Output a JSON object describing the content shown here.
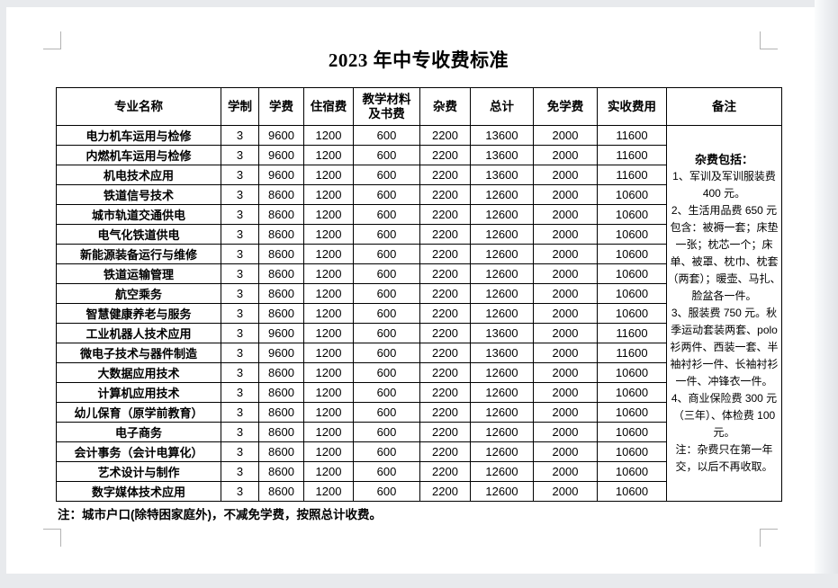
{
  "doc": {
    "title": "2023 年中专收费标准",
    "footer_note": "注：城市户口(除特困家庭外)，不减免学费，按照总计收费。"
  },
  "table": {
    "columns": [
      "专业名称",
      "学制",
      "学费",
      "住宿费",
      "教学材料\n及书费",
      "杂费",
      "总计",
      "免学费",
      "实收费用",
      "备注"
    ],
    "rows": [
      [
        "电力机车运用与检修",
        "3",
        "9600",
        "1200",
        "600",
        "2200",
        "13600",
        "2000",
        "11600"
      ],
      [
        "内燃机车运用与检修",
        "3",
        "9600",
        "1200",
        "600",
        "2200",
        "13600",
        "2000",
        "11600"
      ],
      [
        "机电技术应用",
        "3",
        "9600",
        "1200",
        "600",
        "2200",
        "13600",
        "2000",
        "11600"
      ],
      [
        "铁道信号技术",
        "3",
        "8600",
        "1200",
        "600",
        "2200",
        "12600",
        "2000",
        "10600"
      ],
      [
        "城市轨道交通供电",
        "3",
        "8600",
        "1200",
        "600",
        "2200",
        "12600",
        "2000",
        "10600"
      ],
      [
        "电气化铁道供电",
        "3",
        "8600",
        "1200",
        "600",
        "2200",
        "12600",
        "2000",
        "10600"
      ],
      [
        "新能源装备运行与维修",
        "3",
        "8600",
        "1200",
        "600",
        "2200",
        "12600",
        "2000",
        "10600"
      ],
      [
        "铁道运输管理",
        "3",
        "8600",
        "1200",
        "600",
        "2200",
        "12600",
        "2000",
        "10600"
      ],
      [
        "航空乘务",
        "3",
        "8600",
        "1200",
        "600",
        "2200",
        "12600",
        "2000",
        "10600"
      ],
      [
        "智慧健康养老与服务",
        "3",
        "8600",
        "1200",
        "600",
        "2200",
        "12600",
        "2000",
        "10600"
      ],
      [
        "工业机器人技术应用",
        "3",
        "9600",
        "1200",
        "600",
        "2200",
        "13600",
        "2000",
        "11600"
      ],
      [
        "微电子技术与器件制造",
        "3",
        "9600",
        "1200",
        "600",
        "2200",
        "13600",
        "2000",
        "11600"
      ],
      [
        "大数据应用技术",
        "3",
        "8600",
        "1200",
        "600",
        "2200",
        "12600",
        "2000",
        "10600"
      ],
      [
        "计算机应用技术",
        "3",
        "8600",
        "1200",
        "600",
        "2200",
        "12600",
        "2000",
        "10600"
      ],
      [
        "幼儿保育（原学前教育）",
        "3",
        "8600",
        "1200",
        "600",
        "2200",
        "12600",
        "2000",
        "10600"
      ],
      [
        "电子商务",
        "3",
        "8600",
        "1200",
        "600",
        "2200",
        "12600",
        "2000",
        "10600"
      ],
      [
        "会计事务（会计电算化）",
        "3",
        "8600",
        "1200",
        "600",
        "2200",
        "12600",
        "2000",
        "10600"
      ],
      [
        "艺术设计与制作",
        "3",
        "8600",
        "1200",
        "600",
        "2200",
        "12600",
        "2000",
        "10600"
      ],
      [
        "数字媒体技术应用",
        "3",
        "8600",
        "1200",
        "600",
        "2200",
        "12600",
        "2000",
        "10600"
      ]
    ],
    "remark": {
      "heading": "杂费包括：",
      "paragraphs": [
        "1、军训及军训服装费 400 元。",
        "2、生活用品费 650 元包含：被褥一套；床垫一张；枕芯一个；床单、被罩、枕巾、枕套（两套）；暖壶、马扎、脸盆各一件。",
        "3、服装费 750 元。秋季运动套装两套、polo 衫两件、西装一套、半袖衬衫一件、长袖衬衫一件、冲锋衣一件。",
        "4、商业保险费 300 元（三年）、体检费 100 元。",
        "注：杂费只在第一年交，以后不再收取。"
      ]
    }
  },
  "colors": {
    "page_bg": "#ffffff",
    "app_bg": "#e8eaed",
    "table_border": "#000000",
    "crop_mark": "#b3b3b3",
    "text": "#000000"
  }
}
